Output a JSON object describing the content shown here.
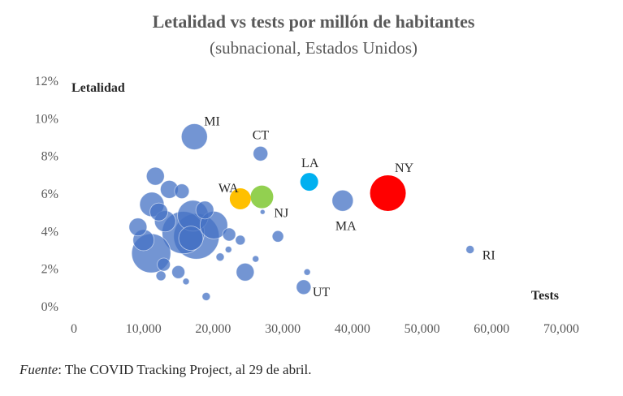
{
  "chart_data": {
    "type": "scatter",
    "title": "Letalidad vs tests por millón de habitantes",
    "subtitle": "(subnacional, Estados Unidos)",
    "xlabel": "Tests",
    "ylabel": "Letalidad",
    "xlim": [
      0,
      70000
    ],
    "ylim": [
      0,
      12
    ],
    "x_ticks": [
      "0",
      "10,000",
      "20,000",
      "30,000",
      "40,000",
      "50,000",
      "60,000",
      "70,000"
    ],
    "y_ticks": [
      "0%",
      "2%",
      "4%",
      "6%",
      "8%",
      "10%",
      "12%"
    ],
    "grid": false,
    "legend": "none",
    "colors": {
      "default": "#4472C4",
      "NY": "#FF0000",
      "NJ": "#92D050",
      "WA": "#FFC000",
      "LA": "#00B0F0"
    },
    "points": [
      {
        "label": "MI",
        "x": 17300,
        "y": 9.0,
        "size": 16
      },
      {
        "label": "CT",
        "x": 26800,
        "y": 8.1,
        "size": 9
      },
      {
        "label": "LA",
        "x": 33800,
        "y": 6.6,
        "size": 11,
        "color": "LA"
      },
      {
        "label": "NY",
        "x": 45100,
        "y": 6.0,
        "size": 22,
        "color": "NY"
      },
      {
        "label": "WA",
        "x": 23900,
        "y": 5.7,
        "size": 13,
        "color": "WA"
      },
      {
        "label": "NJ",
        "x": 27000,
        "y": 5.8,
        "size": 14,
        "color": "NJ"
      },
      {
        "label": "MA",
        "x": 38600,
        "y": 5.6,
        "size": 13
      },
      {
        "label": "RI",
        "x": 56900,
        "y": 3.0,
        "size": 5
      },
      {
        "label": "UT",
        "x": 33000,
        "y": 1.0,
        "size": 9
      },
      {
        "label": "",
        "x": 11700,
        "y": 6.9,
        "size": 11
      },
      {
        "label": "",
        "x": 13700,
        "y": 6.2,
        "size": 11
      },
      {
        "label": "",
        "x": 15500,
        "y": 6.1,
        "size": 9
      },
      {
        "label": "",
        "x": 11200,
        "y": 5.4,
        "size": 15
      },
      {
        "label": "",
        "x": 12200,
        "y": 5.0,
        "size": 11
      },
      {
        "label": "",
        "x": 13100,
        "y": 4.5,
        "size": 13
      },
      {
        "label": "",
        "x": 17100,
        "y": 4.8,
        "size": 19
      },
      {
        "label": "",
        "x": 18800,
        "y": 5.1,
        "size": 11
      },
      {
        "label": "",
        "x": 20100,
        "y": 4.3,
        "size": 17
      },
      {
        "label": "",
        "x": 9200,
        "y": 4.2,
        "size": 11
      },
      {
        "label": "",
        "x": 10000,
        "y": 3.5,
        "size": 13
      },
      {
        "label": "",
        "x": 15700,
        "y": 3.9,
        "size": 26
      },
      {
        "label": "",
        "x": 16800,
        "y": 3.6,
        "size": 15
      },
      {
        "label": "",
        "x": 17600,
        "y": 3.7,
        "size": 28
      },
      {
        "label": "",
        "x": 11100,
        "y": 2.8,
        "size": 24
      },
      {
        "label": "",
        "x": 12900,
        "y": 2.2,
        "size": 8
      },
      {
        "label": "",
        "x": 15000,
        "y": 1.8,
        "size": 8
      },
      {
        "label": "",
        "x": 12500,
        "y": 1.6,
        "size": 6
      },
      {
        "label": "",
        "x": 16100,
        "y": 1.3,
        "size": 4
      },
      {
        "label": "",
        "x": 22300,
        "y": 3.8,
        "size": 8
      },
      {
        "label": "",
        "x": 23900,
        "y": 3.5,
        "size": 6
      },
      {
        "label": "",
        "x": 21000,
        "y": 2.6,
        "size": 5
      },
      {
        "label": "",
        "x": 22200,
        "y": 3.0,
        "size": 4
      },
      {
        "label": "",
        "x": 24600,
        "y": 1.8,
        "size": 11
      },
      {
        "label": "",
        "x": 26100,
        "y": 2.5,
        "size": 4
      },
      {
        "label": "",
        "x": 29300,
        "y": 3.7,
        "size": 7
      },
      {
        "label": "",
        "x": 27100,
        "y": 5.0,
        "size": 3
      },
      {
        "label": "",
        "x": 33500,
        "y": 1.8,
        "size": 4
      },
      {
        "label": "",
        "x": 19000,
        "y": 0.5,
        "size": 5
      }
    ]
  },
  "source": {
    "prefix": "Fuente",
    "text": ": The COVID Tracking Project, al 29 de abril."
  }
}
